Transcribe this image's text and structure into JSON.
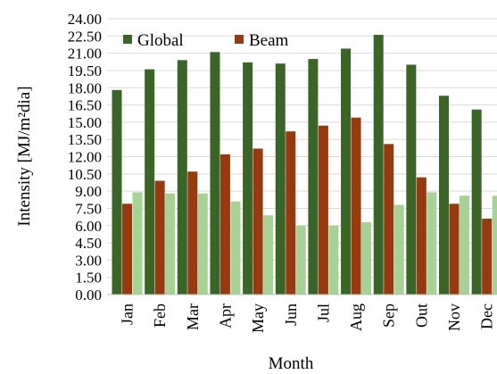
{
  "chart_data": {
    "type": "bar",
    "xlabel": "Month",
    "ylabel": "Intensity [MJ/m²dia]",
    "ylim": [
      0,
      24
    ],
    "y_ticks": [
      "0.00",
      "1.50",
      "3.00",
      "4.50",
      "6.00",
      "7.50",
      "9.00",
      "10.50",
      "12.00",
      "13.50",
      "15.00",
      "16.50",
      "18.00",
      "19.50",
      "21.00",
      "22.50",
      "24.00"
    ],
    "categories": [
      "Jan",
      "Feb",
      "Mar",
      "Apr",
      "May",
      "Jun",
      "Jul",
      "Aug",
      "Sep",
      "Out",
      "Nov",
      "Dec"
    ],
    "grid": true,
    "legend_position": "top-left",
    "series": [
      {
        "name": "Global",
        "color": "#3b6526",
        "values": [
          17.8,
          19.6,
          20.4,
          21.1,
          20.2,
          20.1,
          20.5,
          21.4,
          22.6,
          20.0,
          17.3,
          16.1
        ]
      },
      {
        "name": "Beam",
        "color": "#983a10",
        "values": [
          7.9,
          9.9,
          10.7,
          12.2,
          12.7,
          14.2,
          14.7,
          15.4,
          13.1,
          10.2,
          7.9,
          6.6
        ]
      },
      {
        "color": "#a6d395",
        "values": [
          8.9,
          8.8,
          8.8,
          8.1,
          6.9,
          6.0,
          6.0,
          6.3,
          7.8,
          8.9,
          8.6,
          8.6
        ]
      }
    ]
  }
}
